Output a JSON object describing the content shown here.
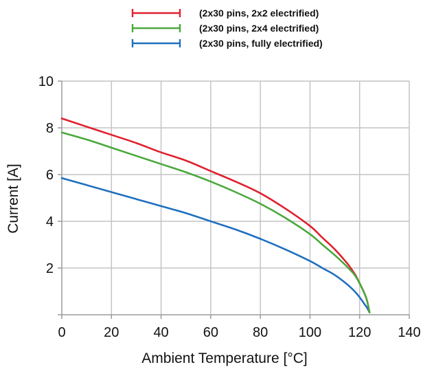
{
  "chart_data": {
    "type": "line",
    "title": "",
    "xlabel": "Ambient Temperature [°C]",
    "ylabel": "Current [A]",
    "xlim": [
      0,
      140
    ],
    "ylim": [
      0,
      10
    ],
    "x_ticks": [
      0,
      20,
      40,
      60,
      80,
      100,
      120,
      140
    ],
    "y_ticks": [
      2,
      4,
      6,
      8,
      10
    ],
    "grid": true,
    "legend_position": "top-center",
    "series": [
      {
        "name": "(2x30 pins, 2x2 electrified)",
        "color": "#e0202e",
        "x": [
          0,
          10,
          20,
          30,
          40,
          50,
          60,
          70,
          80,
          90,
          100,
          105,
          110,
          115,
          118,
          120,
          122,
          123,
          124
        ],
        "y": [
          8.4,
          8.05,
          7.7,
          7.35,
          6.95,
          6.6,
          6.15,
          5.7,
          5.2,
          4.55,
          3.8,
          3.3,
          2.8,
          2.2,
          1.75,
          1.35,
          0.9,
          0.6,
          0.1
        ]
      },
      {
        "name": "(2x30 pins, 2x4 electrified)",
        "color": "#4aa83c",
        "x": [
          0,
          10,
          20,
          30,
          40,
          50,
          60,
          70,
          80,
          90,
          100,
          105,
          110,
          115,
          118,
          120,
          122,
          123,
          124
        ],
        "y": [
          7.8,
          7.5,
          7.15,
          6.8,
          6.45,
          6.1,
          5.7,
          5.25,
          4.75,
          4.15,
          3.45,
          3.0,
          2.55,
          2.05,
          1.7,
          1.35,
          0.9,
          0.6,
          0.1
        ]
      },
      {
        "name": "(2x30 pins, fully electrified)",
        "color": "#1f6fbf",
        "x": [
          0,
          10,
          20,
          30,
          40,
          50,
          60,
          70,
          80,
          90,
          100,
          105,
          110,
          115,
          118,
          120,
          122,
          123,
          124
        ],
        "y": [
          5.85,
          5.55,
          5.25,
          4.95,
          4.65,
          4.35,
          4.0,
          3.65,
          3.25,
          2.8,
          2.3,
          2.0,
          1.7,
          1.3,
          1.0,
          0.75,
          0.45,
          0.3,
          0.1
        ]
      }
    ]
  }
}
